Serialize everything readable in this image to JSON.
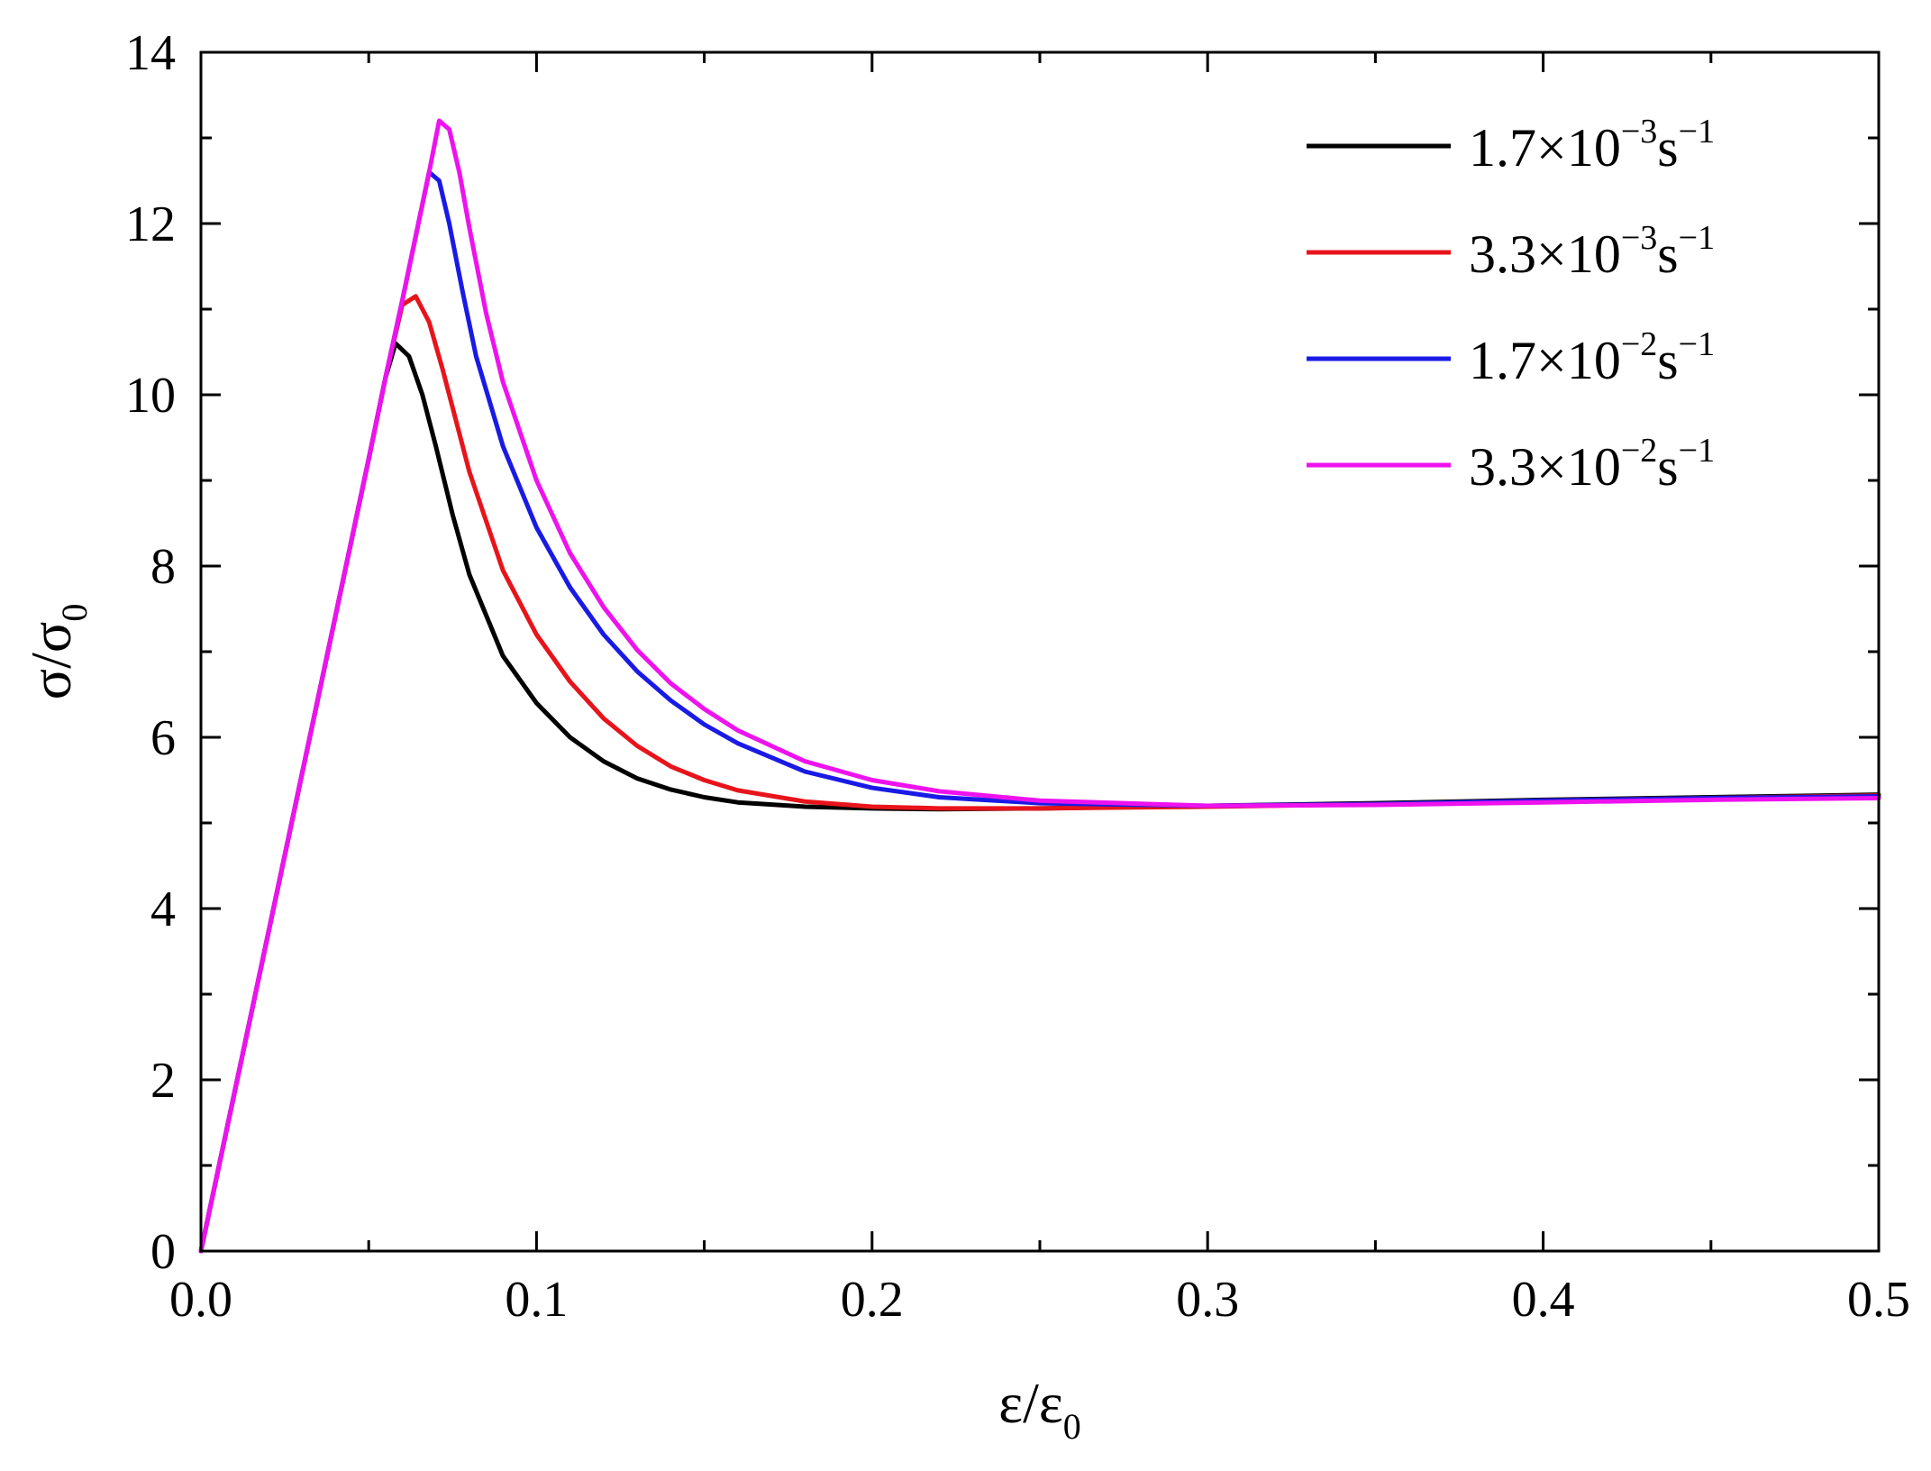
{
  "chart_data": {
    "type": "line",
    "xlabel": {
      "base": "ε/ε",
      "sub": "0"
    },
    "ylabel": {
      "base": "σ/σ",
      "sub": "0"
    },
    "xlim": [
      0,
      0.5
    ],
    "ylim": [
      0,
      14
    ],
    "x_ticks": [
      0.0,
      0.1,
      0.2,
      0.3,
      0.4,
      0.5
    ],
    "x_tick_labels": [
      "0.0",
      "0.1",
      "0.2",
      "0.3",
      "0.4",
      "0.5"
    ],
    "x_minor_step": 0.05,
    "y_ticks": [
      0,
      2,
      4,
      6,
      8,
      10,
      12,
      14
    ],
    "y_tick_labels": [
      "0",
      "2",
      "4",
      "6",
      "8",
      "10",
      "12",
      "14"
    ],
    "y_minor_step": 1,
    "grid": false,
    "legend_position": "top-right",
    "series": [
      {
        "name": "1.7×10⁻³s⁻¹",
        "label": {
          "base": "1.7×10",
          "exp1": "−3",
          "unit": "s",
          "exp2": "−1"
        },
        "color": "#000000",
        "x": [
          0,
          0.01,
          0.02,
          0.03,
          0.04,
          0.05,
          0.055,
          0.058,
          0.062,
          0.066,
          0.07,
          0.075,
          0.08,
          0.09,
          0.1,
          0.11,
          0.12,
          0.13,
          0.14,
          0.15,
          0.16,
          0.18,
          0.2,
          0.22,
          0.25,
          0.3,
          0.35,
          0.4,
          0.45,
          0.5
        ],
        "y": [
          0,
          1.85,
          3.7,
          5.55,
          7.4,
          9.25,
          10.2,
          10.6,
          10.45,
          10.0,
          9.4,
          8.6,
          7.9,
          6.95,
          6.4,
          6.0,
          5.72,
          5.52,
          5.39,
          5.3,
          5.24,
          5.19,
          5.17,
          5.16,
          5.17,
          5.2,
          5.23,
          5.27,
          5.3,
          5.33
        ]
      },
      {
        "name": "3.3×10⁻³s⁻¹",
        "label": {
          "base": "3.3×10",
          "exp1": "−3",
          "unit": "s",
          "exp2": "−1"
        },
        "color": "#e8141b",
        "x": [
          0,
          0.01,
          0.02,
          0.03,
          0.04,
          0.05,
          0.055,
          0.06,
          0.064,
          0.068,
          0.072,
          0.076,
          0.08,
          0.09,
          0.1,
          0.11,
          0.12,
          0.13,
          0.14,
          0.15,
          0.16,
          0.18,
          0.2,
          0.22,
          0.25,
          0.3,
          0.35,
          0.4,
          0.45,
          0.5
        ],
        "y": [
          0,
          1.85,
          3.7,
          5.55,
          7.4,
          9.25,
          10.2,
          11.05,
          11.15,
          10.85,
          10.3,
          9.7,
          9.1,
          7.95,
          7.2,
          6.65,
          6.22,
          5.9,
          5.66,
          5.5,
          5.38,
          5.25,
          5.19,
          5.17,
          5.17,
          5.19,
          5.22,
          5.26,
          5.29,
          5.32
        ]
      },
      {
        "name": "1.7×10⁻²s⁻¹",
        "label": {
          "base": "1.7×10",
          "exp1": "−2",
          "unit": "s",
          "exp2": "−1"
        },
        "color": "#1a1ae6",
        "x": [
          0,
          0.01,
          0.02,
          0.03,
          0.04,
          0.05,
          0.055,
          0.06,
          0.064,
          0.068,
          0.071,
          0.074,
          0.078,
          0.082,
          0.09,
          0.1,
          0.11,
          0.12,
          0.13,
          0.14,
          0.15,
          0.16,
          0.18,
          0.2,
          0.22,
          0.25,
          0.3,
          0.35,
          0.4,
          0.45,
          0.5
        ],
        "y": [
          0,
          1.85,
          3.7,
          5.55,
          7.4,
          9.25,
          10.2,
          11.1,
          11.85,
          12.6,
          12.5,
          12.0,
          11.2,
          10.45,
          9.4,
          8.45,
          7.75,
          7.2,
          6.77,
          6.43,
          6.15,
          5.93,
          5.6,
          5.41,
          5.3,
          5.23,
          5.2,
          5.22,
          5.26,
          5.29,
          5.31
        ]
      },
      {
        "name": "3.3×10⁻²s⁻¹",
        "label": {
          "base": "3.3×10",
          "exp1": "−2",
          "unit": "s",
          "exp2": "−1"
        },
        "color": "#ee12ee",
        "x": [
          0,
          0.01,
          0.02,
          0.03,
          0.04,
          0.05,
          0.055,
          0.06,
          0.064,
          0.068,
          0.071,
          0.074,
          0.077,
          0.08,
          0.085,
          0.09,
          0.1,
          0.11,
          0.12,
          0.13,
          0.14,
          0.15,
          0.16,
          0.18,
          0.2,
          0.22,
          0.25,
          0.3,
          0.35,
          0.4,
          0.45,
          0.5
        ],
        "y": [
          0,
          1.85,
          3.7,
          5.55,
          7.4,
          9.25,
          10.2,
          11.1,
          11.85,
          12.6,
          13.2,
          13.1,
          12.6,
          11.95,
          10.95,
          10.15,
          9.0,
          8.15,
          7.52,
          7.02,
          6.63,
          6.33,
          6.08,
          5.72,
          5.5,
          5.37,
          5.26,
          5.2,
          5.21,
          5.24,
          5.27,
          5.29
        ]
      }
    ]
  }
}
